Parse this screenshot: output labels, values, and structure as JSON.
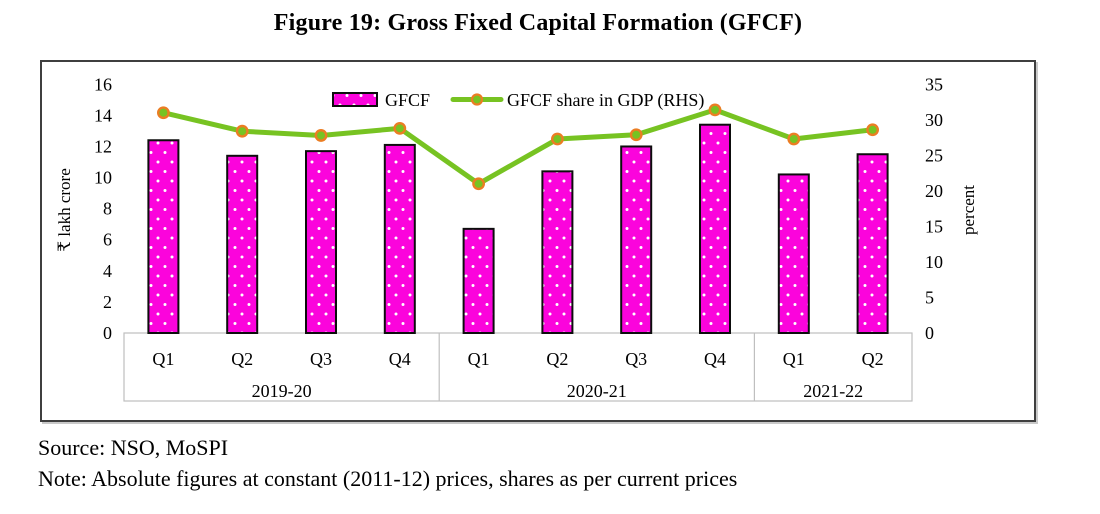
{
  "title": "Figure 19: Gross Fixed Capital Formation (GFCF)",
  "source_line": "Source: NSO, MoSPI",
  "note_line": "Note: Absolute figures at constant (2011-12) prices, shares as per current prices",
  "chart_data": {
    "type": "combo",
    "title": "Figure 19: Gross Fixed Capital Formation (GFCF)",
    "categories": [
      "Q1",
      "Q2",
      "Q3",
      "Q4",
      "Q1",
      "Q2",
      "Q3",
      "Q4",
      "Q1",
      "Q2"
    ],
    "category_groups": [
      {
        "label": "2019-20",
        "span": 4
      },
      {
        "label": "2020-21",
        "span": 4
      },
      {
        "label": "2021-22",
        "span": 2
      }
    ],
    "series": [
      {
        "name": "GFCF",
        "type": "bar",
        "axis": "left",
        "values": [
          12.4,
          11.4,
          11.7,
          12.1,
          6.7,
          10.4,
          12.0,
          13.4,
          10.2,
          11.5
        ],
        "color": "#fb04dc",
        "border_color": "#0d0d0d",
        "pattern": "white-dots"
      },
      {
        "name": "GFCF share in GDP (RHS)",
        "type": "line",
        "axis": "right",
        "values": [
          31.0,
          28.4,
          27.8,
          28.8,
          21.0,
          27.3,
          27.9,
          31.4,
          27.3,
          28.6
        ],
        "color": "#77c322",
        "marker": "circle",
        "marker_ring_color": "#eb7d23"
      }
    ],
    "left_axis": {
      "label": "₹ lakh crore",
      "min": 0,
      "max": 16,
      "step": 2
    },
    "right_axis": {
      "label": "percent",
      "min": 0,
      "max": 35,
      "step": 5
    },
    "grid": false,
    "legend_position": "top-center",
    "axis_line_color": "#bfbfbf"
  }
}
